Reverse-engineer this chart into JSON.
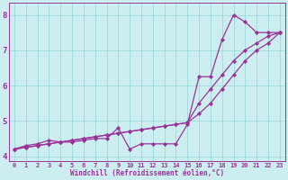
{
  "xlabel": "Windchill (Refroidissement éolien,°C)",
  "background_color": "#cdeef0",
  "grid_color": "#9dd9dc",
  "line_color": "#993399",
  "xlim": [
    -0.5,
    23.5
  ],
  "ylim": [
    3.85,
    8.35
  ],
  "x_ticks": [
    0,
    1,
    2,
    3,
    4,
    5,
    6,
    7,
    8,
    9,
    10,
    11,
    12,
    13,
    14,
    15,
    16,
    17,
    18,
    19,
    20,
    21,
    22,
    23
  ],
  "y_ticks": [
    4,
    5,
    6,
    7,
    8
  ],
  "line1_x": [
    0,
    1,
    2,
    3,
    4,
    5,
    6,
    7,
    8,
    9,
    10,
    11,
    12,
    13,
    14,
    15,
    16,
    17,
    18,
    19,
    20,
    21,
    22,
    23
  ],
  "line1_y": [
    4.2,
    4.3,
    4.35,
    4.45,
    4.4,
    4.4,
    4.45,
    4.5,
    4.5,
    4.8,
    4.2,
    4.35,
    4.35,
    4.35,
    4.35,
    4.9,
    6.25,
    6.25,
    7.3,
    8.0,
    7.8,
    7.5,
    7.5,
    7.5
  ],
  "line2_x": [
    0,
    1,
    2,
    3,
    4,
    5,
    6,
    7,
    8,
    9,
    10,
    11,
    12,
    13,
    14,
    15,
    16,
    17,
    18,
    19,
    20,
    21,
    22,
    23
  ],
  "line2_y": [
    4.2,
    4.25,
    4.3,
    4.35,
    4.4,
    4.45,
    4.5,
    4.55,
    4.6,
    4.65,
    4.7,
    4.75,
    4.8,
    4.85,
    4.9,
    4.95,
    5.5,
    5.9,
    6.3,
    6.7,
    7.0,
    7.2,
    7.4,
    7.5
  ],
  "line3_x": [
    0,
    1,
    2,
    3,
    4,
    5,
    6,
    7,
    8,
    9,
    10,
    11,
    12,
    13,
    14,
    15,
    16,
    17,
    18,
    19,
    20,
    21,
    22,
    23
  ],
  "line3_y": [
    4.2,
    4.25,
    4.3,
    4.35,
    4.4,
    4.45,
    4.5,
    4.55,
    4.6,
    4.65,
    4.7,
    4.75,
    4.8,
    4.85,
    4.9,
    4.95,
    5.2,
    5.5,
    5.9,
    6.3,
    6.7,
    7.0,
    7.2,
    7.5
  ]
}
